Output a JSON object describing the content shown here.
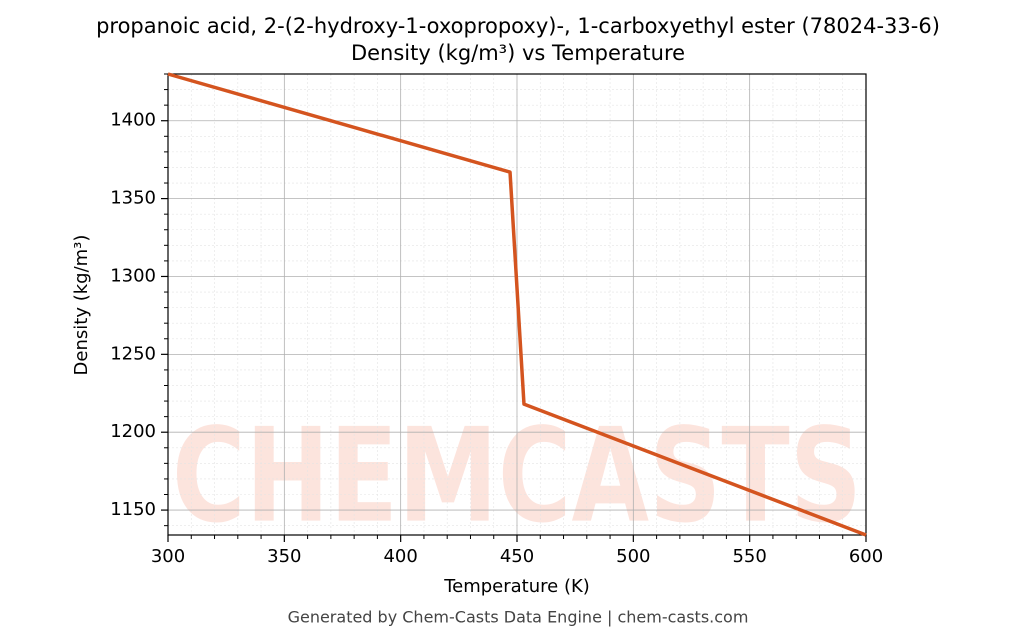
{
  "chart_data": {
    "type": "line",
    "title": "propanoic acid, 2-(2-hydroxy-1-oxopropoxy)-, 1-carboxyethyl ester (78024-33-6)",
    "subtitle": "Density (kg/m³) vs Temperature",
    "x_label": "Temperature (K)",
    "y_label": "Density (kg/m³)",
    "footer": "Generated by Chem-Casts Data Engine | chem-casts.com",
    "watermark": "CHEMCASTS",
    "x": [
      300,
      447,
      453,
      600
    ],
    "series": [
      {
        "name": "Density",
        "color": "#d4541f",
        "values": [
          1430,
          1367,
          1218,
          1134
        ]
      }
    ],
    "xlim": [
      300,
      600
    ],
    "ylim": [
      1134,
      1430
    ],
    "xticks": [
      300,
      350,
      400,
      450,
      500,
      550,
      600
    ],
    "yticks": [
      1150,
      1200,
      1250,
      1300,
      1350,
      1400
    ],
    "xminorticks": [
      310,
      320,
      330,
      340,
      360,
      370,
      380,
      390,
      410,
      420,
      430,
      440,
      460,
      470,
      480,
      490,
      510,
      520,
      530,
      540,
      560,
      570,
      580,
      590
    ],
    "yminorticks": [
      1140,
      1160,
      1170,
      1180,
      1190,
      1210,
      1220,
      1230,
      1240,
      1260,
      1270,
      1280,
      1290,
      1310,
      1320,
      1330,
      1340,
      1360,
      1370,
      1380,
      1390,
      1410,
      1420,
      1430
    ],
    "grid": true
  }
}
